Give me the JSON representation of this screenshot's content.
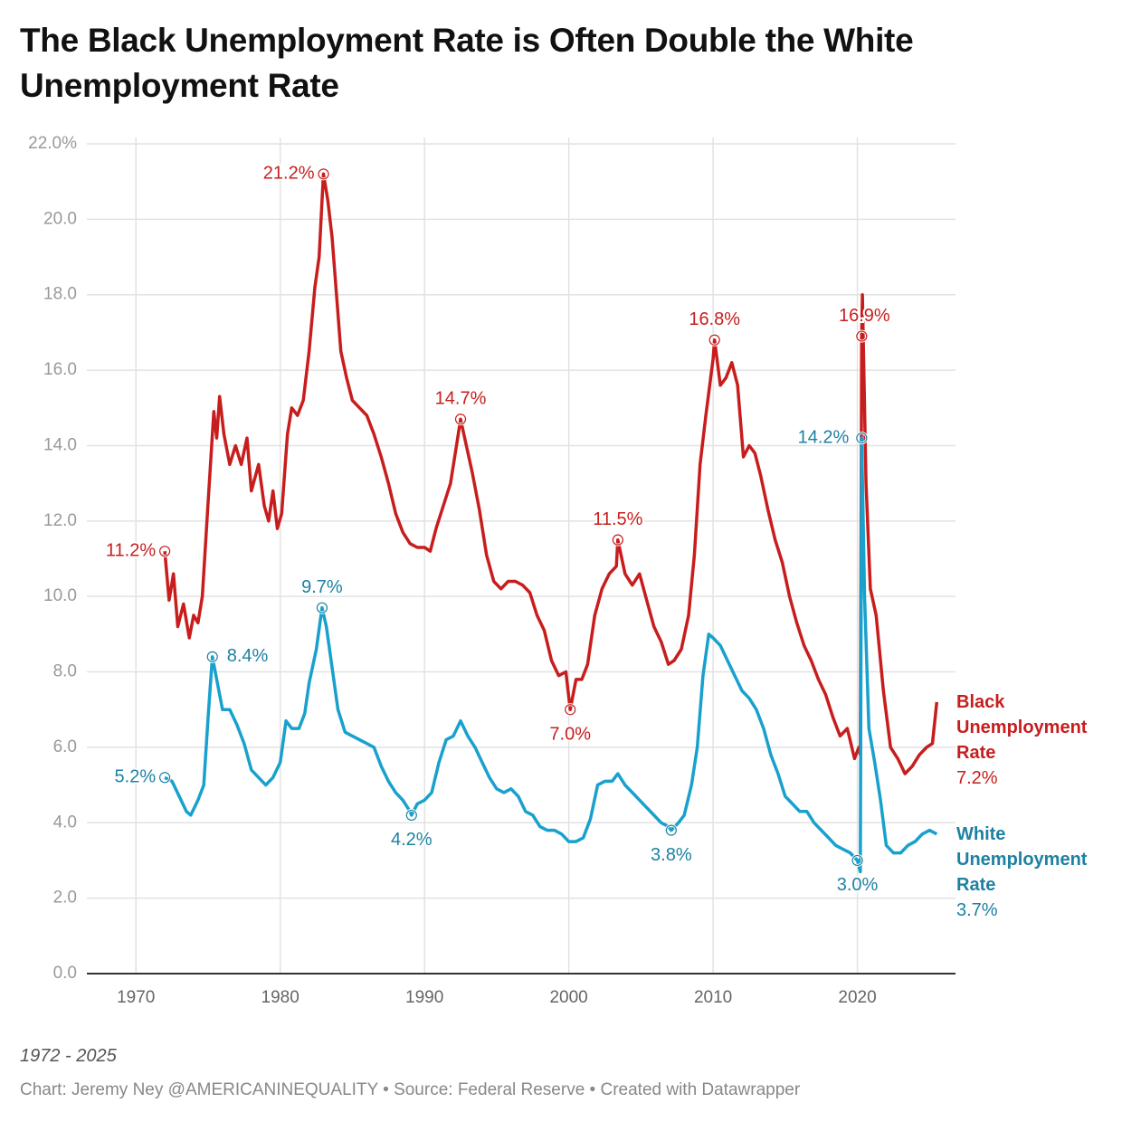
{
  "chart_data": {
    "type": "line",
    "title": "The Black Unemployment Rate is Often Double the White Unemployment Rate",
    "subtitle": "1972 - 2025",
    "source": "Chart: Jeremy Ney @AMERICANINEQUALITY • Source: Federal Reserve • Created with Datawrapper",
    "xlim": [
      1966.6,
      2026.8
    ],
    "xticks": [
      1970,
      1980,
      1990,
      2000,
      2010,
      2020
    ],
    "ylim": [
      0,
      22
    ],
    "yticks": [
      {
        "value": 0,
        "label": "0.0"
      },
      {
        "value": 2,
        "label": "2.0"
      },
      {
        "value": 4,
        "label": "4.0"
      },
      {
        "value": 6,
        "label": "6.0"
      },
      {
        "value": 8,
        "label": "8.0"
      },
      {
        "value": 10,
        "label": "10.0"
      },
      {
        "value": 12,
        "label": "12.0"
      },
      {
        "value": 14,
        "label": "14.0"
      },
      {
        "value": 16,
        "label": "16.0"
      },
      {
        "value": 18,
        "label": "18.0"
      },
      {
        "value": 20,
        "label": "20.0"
      },
      {
        "value": 22,
        "label": "22.0%"
      }
    ],
    "grid": true,
    "series": [
      {
        "name": "Black Unemployment Rate",
        "color": "#c71e1d",
        "last_label": "7.2%",
        "x": [
          1972.0,
          1972.3,
          1972.6,
          1972.9,
          1973.3,
          1973.7,
          1974.0,
          1974.3,
          1974.6,
          1975.0,
          1975.4,
          1975.6,
          1975.8,
          1976.1,
          1976.5,
          1976.9,
          1977.3,
          1977.7,
          1978.0,
          1978.5,
          1978.9,
          1979.2,
          1979.5,
          1979.8,
          1980.1,
          1980.5,
          1980.8,
          1981.2,
          1981.6,
          1982.0,
          1982.4,
          1982.7,
          1982.9,
          1983.0,
          1983.3,
          1983.6,
          1983.9,
          1984.2,
          1984.6,
          1985.0,
          1985.5,
          1986.0,
          1986.5,
          1987.0,
          1987.5,
          1988.0,
          1988.5,
          1989.0,
          1989.5,
          1990.0,
          1990.4,
          1990.8,
          1991.3,
          1991.8,
          1992.3,
          1992.5,
          1992.9,
          1993.3,
          1993.8,
          1994.3,
          1994.8,
          1995.3,
          1995.8,
          1996.3,
          1996.8,
          1997.3,
          1997.8,
          1998.3,
          1998.8,
          1999.3,
          1999.8,
          2000.1,
          2000.5,
          2000.9,
          2001.3,
          2001.8,
          2002.3,
          2002.8,
          2003.3,
          2003.4,
          2003.9,
          2004.4,
          2004.9,
          2005.4,
          2005.9,
          2006.4,
          2006.9,
          2007.3,
          2007.8,
          2008.3,
          2008.7,
          2009.1,
          2009.5,
          2010.0,
          2010.1,
          2010.5,
          2010.9,
          2011.3,
          2011.7,
          2012.1,
          2012.5,
          2012.9,
          2013.3,
          2013.8,
          2014.3,
          2014.8,
          2015.3,
          2015.8,
          2016.3,
          2016.8,
          2017.3,
          2017.8,
          2018.3,
          2018.8,
          2019.3,
          2019.8,
          2020.1,
          2020.2,
          2020.3,
          2020.35,
          2020.6,
          2020.9,
          2021.3,
          2021.8,
          2022.3,
          2022.8,
          2023.3,
          2023.8,
          2024.3,
          2024.8,
          2025.2,
          2025.5
        ],
        "values": [
          11.2,
          9.9,
          10.6,
          9.2,
          9.8,
          8.9,
          9.5,
          9.3,
          10.0,
          12.5,
          14.9,
          14.2,
          15.3,
          14.3,
          13.5,
          14.0,
          13.5,
          14.2,
          12.8,
          13.5,
          12.4,
          12.0,
          12.8,
          11.8,
          12.2,
          14.3,
          15.0,
          14.8,
          15.2,
          16.5,
          18.2,
          19.0,
          20.5,
          21.2,
          20.5,
          19.5,
          18.0,
          16.5,
          15.8,
          15.2,
          15.0,
          14.8,
          14.3,
          13.7,
          13.0,
          12.2,
          11.7,
          11.4,
          11.3,
          11.3,
          11.2,
          11.8,
          12.4,
          13.0,
          14.2,
          14.7,
          14.0,
          13.3,
          12.3,
          11.1,
          10.4,
          10.2,
          10.4,
          10.4,
          10.3,
          10.1,
          9.5,
          9.1,
          8.3,
          7.9,
          8.0,
          7.0,
          7.8,
          7.8,
          8.2,
          9.5,
          10.2,
          10.6,
          10.8,
          11.5,
          10.6,
          10.3,
          10.6,
          9.9,
          9.2,
          8.8,
          8.2,
          8.3,
          8.6,
          9.5,
          11.1,
          13.5,
          14.8,
          16.3,
          16.8,
          15.6,
          15.8,
          16.2,
          15.6,
          13.7,
          14.0,
          13.8,
          13.2,
          12.3,
          11.5,
          10.9,
          10.0,
          9.3,
          8.7,
          8.3,
          7.8,
          7.4,
          6.8,
          6.3,
          6.5,
          5.7,
          6.0,
          5.8,
          16.9,
          18.0,
          13.0,
          10.2,
          9.5,
          7.5,
          6.0,
          5.7,
          5.3,
          5.5,
          5.8,
          6.0,
          6.1,
          7.2
        ],
        "annotations": {
          "x": [
            1972.0,
            1983.0,
            1992.5,
            2000.1,
            2003.4,
            2010.1,
            2020.3
          ],
          "values": [
            11.2,
            21.2,
            14.7,
            7.0,
            11.5,
            16.8,
            16.9
          ],
          "value_labels": [
            "11.2%",
            "21.2%",
            "14.7%",
            "7.0%",
            "11.5%",
            "16.8%",
            "16.9%"
          ]
        }
      },
      {
        "name": "White Unemployment Rate",
        "color": "#18a1cd",
        "last_label": "3.7%",
        "x": [
          1972.0,
          1972.5,
          1973.0,
          1973.5,
          1973.8,
          1974.3,
          1974.7,
          1975.0,
          1975.3,
          1975.7,
          1976.0,
          1976.5,
          1977.0,
          1977.5,
          1978.0,
          1978.5,
          1979.0,
          1979.5,
          1980.0,
          1980.4,
          1980.8,
          1981.3,
          1981.7,
          1982.0,
          1982.5,
          1982.9,
          1983.2,
          1983.6,
          1984.0,
          1984.5,
          1985.0,
          1985.5,
          1986.0,
          1986.5,
          1987.0,
          1987.5,
          1988.0,
          1988.5,
          1989.0,
          1989.1,
          1989.5,
          1990.0,
          1990.5,
          1991.0,
          1991.5,
          1992.0,
          1992.5,
          1993.0,
          1993.5,
          1994.0,
          1994.5,
          1995.0,
          1995.5,
          1996.0,
          1996.5,
          1997.0,
          1997.5,
          1998.0,
          1998.5,
          1999.0,
          1999.5,
          2000.0,
          2000.5,
          2001.0,
          2001.5,
          2002.0,
          2002.5,
          2003.0,
          2003.4,
          2003.9,
          2004.4,
          2004.9,
          2005.4,
          2005.9,
          2006.4,
          2006.9,
          2007.1,
          2007.6,
          2008.0,
          2008.5,
          2008.9,
          2009.3,
          2009.7,
          2010.0,
          2010.5,
          2011.0,
          2011.5,
          2012.0,
          2012.5,
          2013.0,
          2013.5,
          2014.0,
          2014.5,
          2015.0,
          2015.5,
          2016.0,
          2016.5,
          2017.0,
          2017.5,
          2018.0,
          2018.5,
          2019.0,
          2019.5,
          2020.0,
          2020.2,
          2020.3,
          2020.5,
          2020.8,
          2021.2,
          2021.6,
          2022.0,
          2022.5,
          2023.0,
          2023.5,
          2024.0,
          2024.5,
          2025.0,
          2025.5
        ],
        "values": [
          5.2,
          5.1,
          4.7,
          4.3,
          4.2,
          4.6,
          5.0,
          6.8,
          8.4,
          7.6,
          7.0,
          7.0,
          6.6,
          6.1,
          5.4,
          5.2,
          5.0,
          5.2,
          5.6,
          6.7,
          6.5,
          6.5,
          6.9,
          7.7,
          8.6,
          9.7,
          9.2,
          8.1,
          7.0,
          6.4,
          6.3,
          6.2,
          6.1,
          6.0,
          5.5,
          5.1,
          4.8,
          4.6,
          4.3,
          4.2,
          4.5,
          4.6,
          4.8,
          5.6,
          6.2,
          6.3,
          6.7,
          6.3,
          6.0,
          5.6,
          5.2,
          4.9,
          4.8,
          4.9,
          4.7,
          4.3,
          4.2,
          3.9,
          3.8,
          3.8,
          3.7,
          3.5,
          3.5,
          3.6,
          4.1,
          5.0,
          5.1,
          5.1,
          5.3,
          5.0,
          4.8,
          4.6,
          4.4,
          4.2,
          4.0,
          3.9,
          3.8,
          4.0,
          4.2,
          5.0,
          6.0,
          7.9,
          9.0,
          8.9,
          8.7,
          8.3,
          7.9,
          7.5,
          7.3,
          7.0,
          6.5,
          5.8,
          5.3,
          4.7,
          4.5,
          4.3,
          4.3,
          4.0,
          3.8,
          3.6,
          3.4,
          3.3,
          3.2,
          3.0,
          2.7,
          14.2,
          10.0,
          6.5,
          5.6,
          4.6,
          3.4,
          3.2,
          3.2,
          3.4,
          3.5,
          3.7,
          3.8,
          3.7
        ],
        "annotations": {
          "x": [
            1972.0,
            1975.3,
            1982.9,
            1989.1,
            2007.1,
            2020.3,
            2020.0
          ],
          "values": [
            5.2,
            8.4,
            9.7,
            4.2,
            3.8,
            14.2,
            3.0
          ],
          "value_labels": [
            "5.2%",
            "8.4%",
            "9.7%",
            "4.2%",
            "3.8%",
            "14.2%",
            "3.0%"
          ]
        }
      }
    ]
  }
}
